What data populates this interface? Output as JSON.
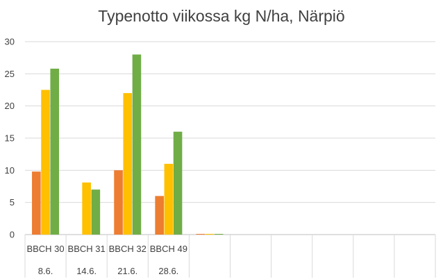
{
  "chart_data": {
    "type": "bar",
    "title": "Typenotto viikossa kg N/ha, Närpiö",
    "xlabel": "",
    "ylabel": "",
    "ylim": [
      0,
      30
    ],
    "yticks": [
      0,
      5,
      10,
      15,
      20,
      25,
      30
    ],
    "grid": true,
    "legend": "none",
    "category_slots": 10,
    "categories": [
      {
        "stage": "BBCH 30",
        "date": "8.6."
      },
      {
        "stage": "BBCH 31",
        "date": "14.6."
      },
      {
        "stage": "BBCH 32",
        "date": "21.6."
      },
      {
        "stage": "BBCH 49",
        "date": "28.6."
      },
      {
        "stage": "",
        "date": ""
      },
      {
        "stage": "",
        "date": ""
      },
      {
        "stage": "",
        "date": ""
      },
      {
        "stage": "",
        "date": ""
      },
      {
        "stage": "",
        "date": ""
      },
      {
        "stage": "",
        "date": ""
      }
    ],
    "series": [
      {
        "color": "#ED7D31",
        "values": [
          9.8,
          null,
          10.0,
          6.0,
          0.1,
          null,
          null,
          null,
          null,
          null
        ]
      },
      {
        "color": "#FFC000",
        "values": [
          22.5,
          8.1,
          22.0,
          11.0,
          0.1,
          null,
          null,
          null,
          null,
          null
        ]
      },
      {
        "color": "#70AD47",
        "values": [
          25.8,
          7.0,
          28.0,
          16.0,
          0.1,
          null,
          null,
          null,
          null,
          null
        ]
      }
    ]
  }
}
